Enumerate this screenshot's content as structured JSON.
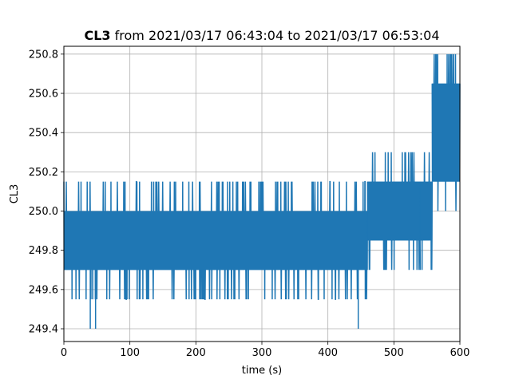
{
  "chart_data": {
    "type": "line",
    "title_bold": "CL3",
    "title_rest": " from 2021/03/17 06:43:04 to 2021/03/17 06:53:04",
    "xlabel": "time (s)",
    "ylabel": "CL3",
    "xlim": [
      0,
      600
    ],
    "ylim": [
      249.335,
      250.84
    ],
    "xticks": [
      0,
      100,
      200,
      300,
      400,
      500,
      600
    ],
    "xtick_labels": [
      "0",
      "100",
      "200",
      "300",
      "400",
      "500",
      "600"
    ],
    "yticks": [
      249.4,
      249.6,
      249.8,
      250.0,
      250.2,
      250.4,
      250.6,
      250.8
    ],
    "ytick_labels": [
      "249.4",
      "249.6",
      "249.8",
      "250.0",
      "250.2",
      "250.4",
      "250.6",
      "250.8"
    ],
    "grid": true,
    "color": "#1f77b4",
    "series": [
      {
        "segments": [
          {
            "x_start": 0,
            "x_end": 460,
            "base_low": 249.7,
            "base_high": 250.0,
            "spike_high": 250.15,
            "spike_low": 249.55,
            "outlier_lows": [
              [
                40,
                249.4
              ],
              [
                48,
                249.4
              ],
              [
                446,
                249.4
              ]
            ]
          },
          {
            "x_start": 460,
            "x_end": 540,
            "base_low": 249.85,
            "base_high": 250.15,
            "spike_high": 250.3,
            "spike_low": 249.7
          },
          {
            "x_start": 540,
            "x_end": 558,
            "base_low": 249.85,
            "base_high": 250.15,
            "spike_high": 250.3,
            "spike_low": 249.7
          },
          {
            "x_start": 558,
            "x_end": 600,
            "base_low": 250.15,
            "base_high": 250.65,
            "spike_high": 250.8,
            "spike_low": 250.0
          }
        ]
      }
    ]
  }
}
